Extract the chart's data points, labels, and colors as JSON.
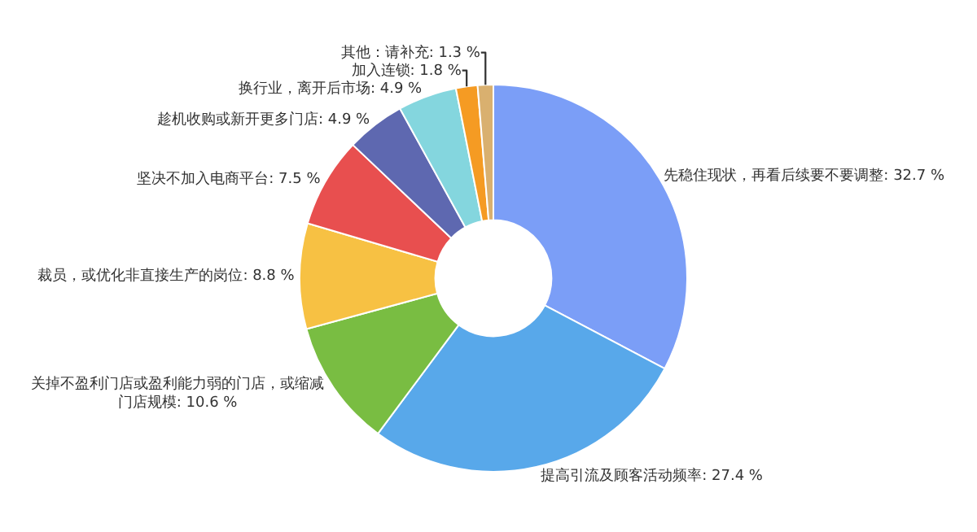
{
  "chart_data": {
    "type": "donut",
    "categories": [
      "先稳住现状，再看后续要不要调整",
      "提高引流及顾客活动频率",
      "关掉不盈利门店或盈利能力弱的门店，或缩减门店规模",
      "裁员，或优化非直接生产的岗位",
      "坚决不加入电商平台",
      "趁机收购或新开更多门店",
      "换行业，离开后市场",
      "加入连锁",
      "其他：请补充"
    ],
    "values": [
      32.7,
      27.4,
      10.6,
      8.8,
      7.5,
      4.9,
      4.9,
      1.8,
      1.3
    ],
    "value_labels": [
      "32.7 %",
      "27.4 %",
      "10.6 %",
      "8.8 %",
      "7.5 %",
      "4.9 %",
      "4.9 %",
      "1.8 %",
      "1.3 %"
    ],
    "colors": [
      "#7b9ef7",
      "#58a8ea",
      "#79bd42",
      "#f7c143",
      "#e84f4f",
      "#5e68b0",
      "#84d6de",
      "#f59b23",
      "#d9b06f"
    ],
    "legend": false
  }
}
